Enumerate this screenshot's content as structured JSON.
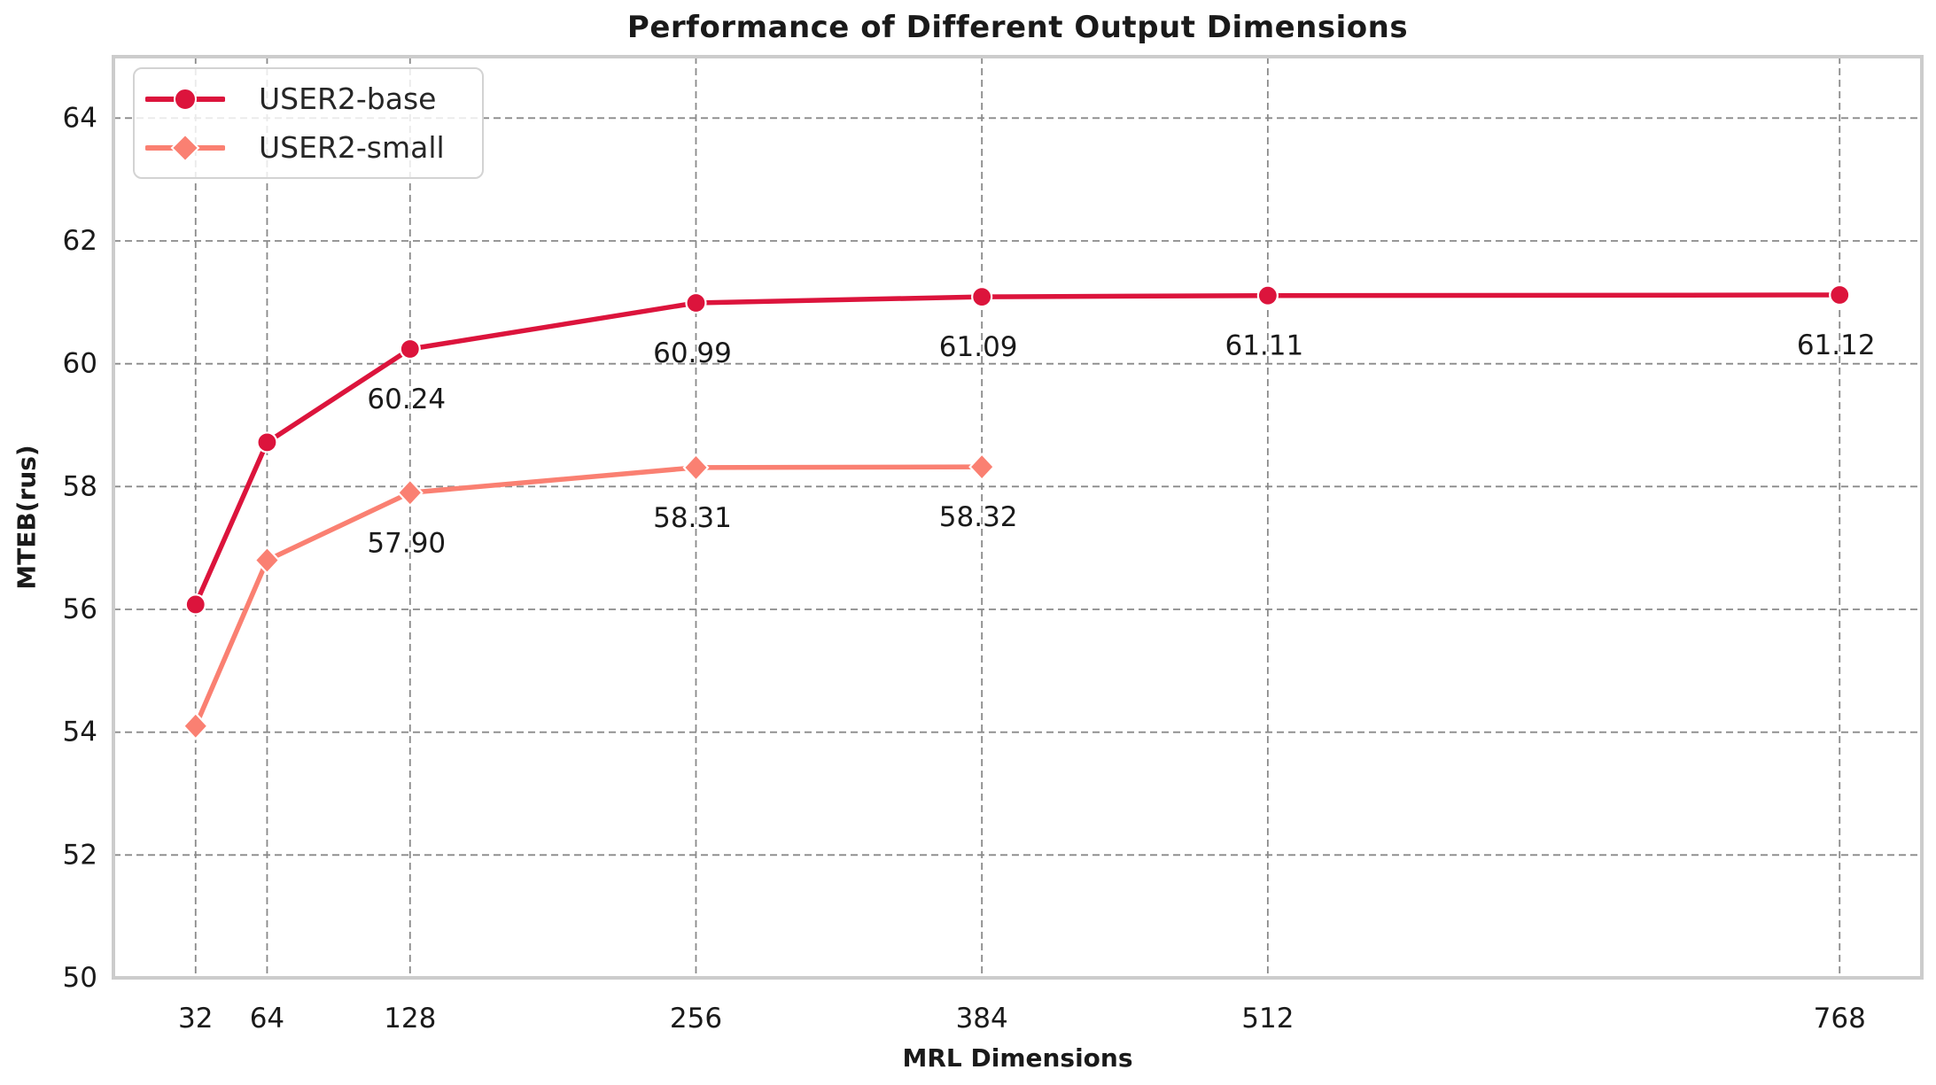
{
  "chart_data": {
    "type": "line",
    "title": "Performance of Different Output Dimensions",
    "xlabel": "MRL Dimensions",
    "ylabel": "MTEB(rus)",
    "xlim": [
      -4.8,
      804.8
    ],
    "ylim": [
      50,
      65
    ],
    "x_ticks": [
      32,
      64,
      128,
      256,
      384,
      512,
      768
    ],
    "y_ticks": [
      50,
      52,
      54,
      56,
      58,
      60,
      62,
      64
    ],
    "grid": true,
    "grid_style": "dashed",
    "legend_position": "upper-left",
    "series": [
      {
        "name": "USER2-base",
        "color": "#DC143C",
        "marker": "circle",
        "x": [
          32,
          64,
          128,
          256,
          384,
          512,
          768
        ],
        "y": [
          56.08,
          58.72,
          60.24,
          60.99,
          61.09,
          61.11,
          61.12
        ],
        "point_labels": [
          "",
          "",
          "60.24",
          "60.99",
          "61.09",
          "61.11",
          "61.12"
        ]
      },
      {
        "name": "USER2-small",
        "color": "#FA8072",
        "marker": "diamond",
        "x": [
          32,
          64,
          128,
          256,
          384
        ],
        "y": [
          54.1,
          56.8,
          57.9,
          58.31,
          58.32
        ],
        "point_labels": [
          "",
          "",
          "57.90",
          "58.31",
          "58.32"
        ]
      }
    ],
    "colors": {
      "grid": "#8a8a8a",
      "spine": "#cccccc",
      "text": "#1a1a1a",
      "marker_edge": "#ffffff"
    }
  }
}
